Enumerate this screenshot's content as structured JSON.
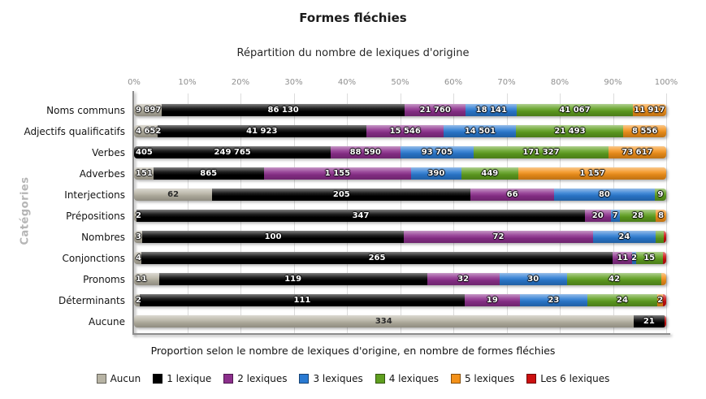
{
  "header": {
    "title": "Formes fléchies",
    "subtitle": "Répartition du nombre de lexiques d'origine"
  },
  "caption": "Proportion selon le nombre de lexiques d'origine, en nombre de formes fléchies",
  "y_axis_title": "Catégories",
  "x_ticks": [
    "0%",
    "10%",
    "20%",
    "30%",
    "40%",
    "50%",
    "60%",
    "70%",
    "80%",
    "90%",
    "100%"
  ],
  "legend": [
    {
      "label": "Aucun",
      "color": "#b7b3a4"
    },
    {
      "label": "1 lexique",
      "color": "#000000"
    },
    {
      "label": "2 lexiques",
      "color": "#8c2f8c"
    },
    {
      "label": "3 lexiques",
      "color": "#2a7ad2"
    },
    {
      "label": "4 lexiques",
      "color": "#5f9f1f"
    },
    {
      "label": "5 lexiques",
      "color": "#f39119"
    },
    {
      "label": "Les 6 lexiques",
      "color": "#cc1010"
    }
  ],
  "chart_data": {
    "type": "bar",
    "orientation": "horizontal",
    "stacked": "percent",
    "title": "Formes fléchies",
    "subtitle": "Répartition du nombre de lexiques d'origine",
    "xlabel": "",
    "ylabel": "Catégories",
    "xlim": [
      0,
      100
    ],
    "x_tick_interval_pct": 10,
    "grid": true,
    "legend_position": "bottom",
    "categories": [
      "Noms communs",
      "Adjectifs qualificatifs",
      "Verbes",
      "Adverbes",
      "Interjections",
      "Prépositions",
      "Nombres",
      "Conjonctions",
      "Pronoms",
      "Déterminants",
      "Aucune"
    ],
    "series": [
      {
        "name": "Aucun",
        "color": "#b7b3a4",
        "values": [
          9897,
          4652,
          405,
          151,
          62,
          2,
          3,
          4,
          11,
          2,
          334
        ],
        "labels": [
          "9 897",
          "4 652",
          "405",
          "151",
          "62",
          "2",
          "3",
          "4",
          "11",
          "2",
          "334"
        ]
      },
      {
        "name": "1 lexique",
        "color": "#000000",
        "values": [
          86130,
          41923,
          249765,
          865,
          205,
          347,
          100,
          265,
          119,
          111,
          21
        ],
        "labels": [
          "86 130",
          "41 923",
          "249 765",
          "865",
          "205",
          "347",
          "100",
          "265",
          "119",
          "111",
          "21"
        ]
      },
      {
        "name": "2 lexiques",
        "color": "#8c2f8c",
        "values": [
          21760,
          15546,
          88590,
          1155,
          66,
          20,
          72,
          11,
          32,
          19,
          0
        ],
        "labels": [
          "21 760",
          "15 546",
          "88 590",
          "1 155",
          "66",
          "20",
          "72",
          "11",
          "32",
          "19",
          ""
        ]
      },
      {
        "name": "3 lexiques",
        "color": "#2a7ad2",
        "values": [
          18141,
          14501,
          93705,
          390,
          80,
          7,
          24,
          2,
          30,
          23,
          0
        ],
        "labels": [
          "18 141",
          "14 501",
          "93 705",
          "390",
          "80",
          "7",
          "24",
          "2",
          "30",
          "23",
          ""
        ]
      },
      {
        "name": "4 lexiques",
        "color": "#5f9f1f",
        "values": [
          41067,
          21493,
          171327,
          449,
          9,
          28,
          3,
          15,
          42,
          24,
          0
        ],
        "labels": [
          "41 067",
          "21 493",
          "171 327",
          "449",
          "9",
          "28",
          "",
          "15",
          "42",
          "24",
          ""
        ]
      },
      {
        "name": "5 lexiques",
        "color": "#f39119",
        "values": [
          11917,
          8556,
          73617,
          1157,
          0,
          8,
          0,
          0,
          2,
          2,
          0
        ],
        "labels": [
          "11 917",
          "8 556",
          "73 617",
          "1 157",
          "",
          "8",
          "",
          "",
          "",
          "2",
          ""
        ]
      },
      {
        "name": "Les 6 lexiques",
        "color": "#cc1010",
        "values": [
          0,
          0,
          0,
          0,
          0,
          0,
          1,
          2,
          0,
          1,
          1
        ],
        "labels": [
          "",
          "",
          "",
          "",
          "",
          "",
          "",
          "",
          "",
          "",
          ""
        ]
      }
    ]
  }
}
